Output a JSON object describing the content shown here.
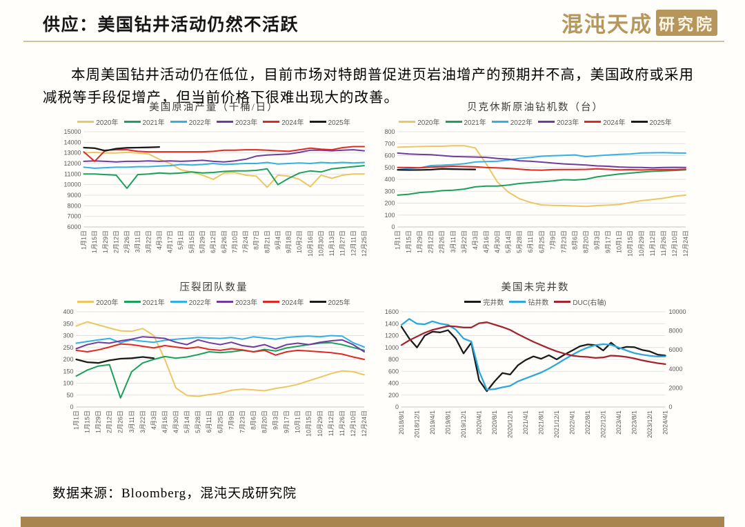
{
  "page": {
    "title": "供应：美国钻井活动仍然不活跃",
    "logo": {
      "brand": "混沌天成",
      "suffix": "研究院"
    },
    "body_text": "本周美国钻井活动仍在低位，目前市场对特朗普促进页岩油增产的预期并不高，美国政府或采用减税等手段促增产，但当前价格下很难出现大的改善。",
    "source_note": "数据来源：Bloomberg，混沌天成研究院",
    "accent_color": "#a8854f",
    "logo_color": "#b6965a"
  },
  "chart_data": [
    {
      "type": "line",
      "title": "美国原油产量（千桶/日）",
      "legend_position": "top",
      "grid": true,
      "ylim": [
        6000,
        15000
      ],
      "ystep": 1000,
      "x_labels": [
        "1月1日",
        "1月15日",
        "1月29日",
        "2月12日",
        "2月26日",
        "3月11日",
        "3月22日",
        "4月3日",
        "4月17日",
        "5月1日",
        "5月15日",
        "5月29日",
        "6月12日",
        "6月26日",
        "7月10日",
        "7月24日",
        "8月7日",
        "8月21日",
        "9月4日",
        "9月18日",
        "10月2日",
        "10月16日",
        "10月30日",
        "11月13日",
        "11月27日",
        "12月11日",
        "12月25日"
      ],
      "series": [
        {
          "name": "2020年",
          "color": "#ecc65f",
          "values": [
            13000,
            13050,
            13000,
            13000,
            13050,
            13000,
            12900,
            12400,
            12000,
            11400,
            11200,
            10900,
            10500,
            11100,
            11150,
            10900,
            10800,
            9750,
            10900,
            10800,
            10500,
            9800,
            10900,
            10600,
            10900,
            11000,
            11000
          ]
        },
        {
          "name": "2021年",
          "color": "#18a05c",
          "values": [
            11000,
            11000,
            10950,
            10900,
            9650,
            10950,
            11000,
            11100,
            11050,
            11100,
            11200,
            11100,
            11150,
            11250,
            11300,
            11300,
            11350,
            11500,
            10000,
            10600,
            11100,
            11300,
            11200,
            11500,
            11600,
            11700,
            11800
          ]
        },
        {
          "name": "2022年",
          "color": "#2fb1e3",
          "values": [
            11650,
            11550,
            11600,
            11650,
            11650,
            11700,
            11700,
            11750,
            11800,
            11900,
            11850,
            11900,
            12000,
            11900,
            11950,
            12000,
            12000,
            12100,
            11950,
            12000,
            12050,
            12000,
            12100,
            12050,
            12100,
            12050,
            12100
          ]
        },
        {
          "name": "2023年",
          "color": "#6f3b9e",
          "values": [
            12200,
            12250,
            12200,
            12150,
            12200,
            12200,
            12250,
            12200,
            12250,
            12200,
            12250,
            12300,
            12200,
            12150,
            12250,
            12400,
            12700,
            12800,
            12850,
            12900,
            13050,
            13250,
            13250,
            13200,
            13250,
            13300,
            13200
          ]
        },
        {
          "name": "2024年",
          "color": "#e02724",
          "values": [
            13100,
            12200,
            13250,
            13300,
            13300,
            13150,
            13100,
            13100,
            13100,
            13100,
            13100,
            13100,
            13150,
            13250,
            13250,
            13300,
            13300,
            13250,
            13200,
            13150,
            13300,
            13450,
            13350,
            13300,
            13500,
            13600,
            13600
          ]
        },
        {
          "name": "2025年",
          "color": "#1a1a1a",
          "width": 2.3,
          "values": [
            13500,
            13450,
            13200,
            13400,
            13480,
            13500,
            13520,
            13560,
            null,
            null,
            null,
            null,
            null,
            null,
            null,
            null,
            null,
            null,
            null,
            null,
            null,
            null,
            null,
            null,
            null,
            null,
            null
          ]
        }
      ]
    },
    {
      "type": "line",
      "title": "贝克休斯原油钻机数（台）",
      "legend_position": "top",
      "grid": true,
      "ylim": [
        0,
        800
      ],
      "ystep": 100,
      "x_labels": [
        "1月1日",
        "1月15日",
        "1月29日",
        "2月12日",
        "2月26日",
        "3月11日",
        "3月22日",
        "4月3日",
        "4月16日",
        "4月30日",
        "5月14日",
        "5月28日",
        "6月11日",
        "6月25日",
        "7月9日",
        "7月23日",
        "8月6日",
        "8月20日",
        "9月3日",
        "9月17日",
        "10月1日",
        "10月15日",
        "10月29日",
        "11月12日",
        "11月26日",
        "12月10日",
        "12月24日"
      ],
      "series": [
        {
          "name": "2020年",
          "color": "#ecc65f",
          "values": [
            670,
            673,
            676,
            678,
            678,
            683,
            683,
            664,
            529,
            378,
            292,
            237,
            206,
            185,
            181,
            180,
            176,
            172,
            180,
            183,
            189,
            205,
            221,
            231,
            241,
            258,
            267
          ]
        },
        {
          "name": "2021年",
          "color": "#18a05c",
          "values": [
            267,
            275,
            289,
            295,
            305,
            309,
            318,
            337,
            343,
            344,
            352,
            365,
            372,
            380,
            387,
            397,
            394,
            401,
            421,
            433,
            445,
            452,
            461,
            467,
            471,
            475,
            480
          ]
        },
        {
          "name": "2022年",
          "color": "#2fb1e3",
          "values": [
            481,
            491,
            497,
            516,
            519,
            524,
            531,
            546,
            549,
            552,
            563,
            576,
            584,
            594,
            598,
            601,
            605,
            591,
            599,
            604,
            610,
            613,
            622,
            623,
            625,
            622,
            621
          ]
        },
        {
          "name": "2023年",
          "color": "#6f3b9e",
          "values": [
            621,
            613,
            609,
            607,
            600,
            592,
            590,
            588,
            585,
            575,
            570,
            556,
            552,
            545,
            537,
            530,
            525,
            520,
            513,
            510,
            504,
            501,
            500,
            496,
            500,
            501,
            500
          ]
        },
        {
          "name": "2024年",
          "color": "#e02724",
          "values": [
            500,
            499,
            497,
            503,
            506,
            510,
            508,
            506,
            499,
            496,
            492,
            485,
            479,
            477,
            482,
            483,
            483,
            484,
            488,
            484,
            480,
            482,
            479,
            482,
            483,
            482,
            485
          ]
        },
        {
          "name": "2025年",
          "color": "#1a1a1a",
          "width": 2.3,
          "values": [
            480,
            478,
            479,
            481,
            488,
            486,
            484,
            483,
            null,
            null,
            null,
            null,
            null,
            null,
            null,
            null,
            null,
            null,
            null,
            null,
            null,
            null,
            null,
            null,
            null,
            null,
            null
          ]
        }
      ]
    },
    {
      "type": "line",
      "title": "压裂团队数量",
      "legend_position": "top",
      "grid": true,
      "ylim": [
        0,
        400
      ],
      "ystep": 50,
      "x_labels": [
        "1月1日",
        "1月15日",
        "1月29日",
        "2月12日",
        "2月26日",
        "3月11日",
        "3月22日",
        "4月3日",
        "4月16日",
        "4月30日",
        "5月14日",
        "5月28日",
        "6月11日",
        "6月25日",
        "7月9日",
        "7月23日",
        "8月6日",
        "8月20日",
        "9月3日",
        "9月17日",
        "10月1日",
        "10月15日",
        "10月29日",
        "11月12日",
        "11月26日",
        "12月10日",
        "12月24日"
      ],
      "series": [
        {
          "name": "2020年",
          "color": "#ecc65f",
          "values": [
            340,
            358,
            345,
            332,
            320,
            318,
            330,
            300,
            200,
            80,
            48,
            45,
            52,
            58,
            70,
            75,
            72,
            68,
            78,
            85,
            95,
            110,
            125,
            140,
            152,
            148,
            135
          ]
        },
        {
          "name": "2021年",
          "color": "#18a05c",
          "values": [
            130,
            155,
            172,
            178,
            38,
            148,
            185,
            200,
            212,
            205,
            210,
            220,
            232,
            228,
            232,
            238,
            232,
            242,
            235,
            248,
            255,
            262,
            268,
            270,
            262,
            250,
            238
          ]
        },
        {
          "name": "2022年",
          "color": "#2fb1e3",
          "values": [
            268,
            275,
            282,
            288,
            270,
            282,
            276,
            272,
            280,
            285,
            288,
            292,
            290,
            288,
            292,
            285,
            295,
            290,
            285,
            292,
            296,
            298,
            295,
            300,
            298,
            270,
            252
          ]
        },
        {
          "name": "2023年",
          "color": "#6f3b9e",
          "values": [
            245,
            262,
            272,
            268,
            278,
            285,
            295,
            292,
            288,
            272,
            262,
            282,
            270,
            262,
            272,
            258,
            252,
            262,
            245,
            262,
            268,
            262,
            272,
            278,
            282,
            262,
            232
          ]
        },
        {
          "name": "2024年",
          "color": "#e02724",
          "values": [
            238,
            232,
            240,
            252,
            265,
            262,
            255,
            248,
            258,
            252,
            246,
            252,
            242,
            238,
            245,
            240,
            232,
            238,
            218,
            232,
            238,
            235,
            232,
            228,
            222,
            210,
            200
          ]
        },
        {
          "name": "2025年",
          "color": "#1a1a1a",
          "width": 2.3,
          "values": [
            200,
            188,
            185,
            196,
            203,
            205,
            210,
            205,
            null,
            null,
            null,
            null,
            null,
            null,
            null,
            null,
            null,
            null,
            null,
            null,
            null,
            null,
            null,
            null,
            null,
            null,
            null
          ]
        }
      ]
    },
    {
      "type": "line",
      "title": "美国未完井数",
      "legend_position": "top",
      "grid": true,
      "ylim": [
        0,
        1600
      ],
      "ystep": 200,
      "ylim_right": [
        0,
        10000
      ],
      "ystep_right": 2000,
      "x_labels": [
        "2018/8/1",
        "2018/12/1",
        "2019/4/1",
        "2019/8/1",
        "2019/12/1",
        "2020/4/1",
        "2020/8/1",
        "2020/12/1",
        "2021/4/1",
        "2021/8/1",
        "2021/12/1",
        "2022/4/1",
        "2022/8/1",
        "2022/12/1",
        "2023/4/1",
        "2023/8/1",
        "2023/12/1",
        "2024/4/1"
      ],
      "series": [
        {
          "name": "完井数",
          "color": "#1a1a1a",
          "width": 2.3,
          "values": [
            1350,
            1150,
            1000,
            1200,
            1265,
            1255,
            1290,
            1150,
            900,
            1080,
            450,
            265,
            430,
            570,
            545,
            700,
            790,
            850,
            810,
            870,
            800,
            880,
            950,
            1020,
            1050,
            1040,
            950,
            1080,
            980,
            1010,
            1005,
            960,
            935,
            880,
            865
          ]
        },
        {
          "name": "钻井数",
          "color": "#29a8dc",
          "width": 2.3,
          "values": [
            1380,
            1480,
            1400,
            1390,
            1440,
            1400,
            1380,
            1300,
            1150,
            1100,
            600,
            290,
            300,
            330,
            355,
            430,
            480,
            530,
            580,
            645,
            720,
            800,
            875,
            945,
            1000,
            1040,
            1055,
            1045,
            1000,
            950,
            905,
            880,
            860,
            848,
            850
          ]
        },
        {
          "name": "DUC(右轴)",
          "color": "#a32430",
          "width": 2.3,
          "axis": "right",
          "values": [
            6500,
            7000,
            7400,
            7800,
            8100,
            8300,
            8500,
            8450,
            8350,
            8350,
            8800,
            8900,
            8650,
            8400,
            8100,
            7650,
            7250,
            6850,
            6500,
            6150,
            5850,
            5600,
            5400,
            5300,
            5250,
            5150,
            5200,
            5400,
            5350,
            5250,
            5100,
            4900,
            4750,
            4600,
            4500
          ]
        }
      ]
    }
  ]
}
